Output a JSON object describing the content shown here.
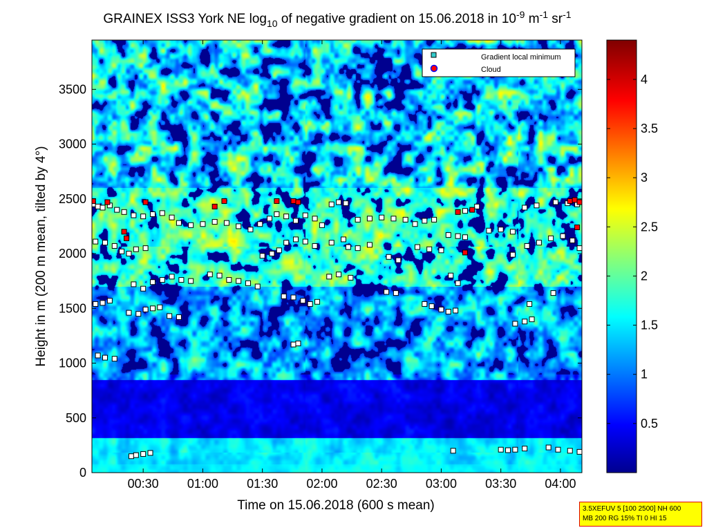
{
  "chart_data": {
    "type": "heatmap",
    "title": {
      "prefix": "GRAINEX ISS3 York NE log",
      "sub": "10",
      "middle": " of negative gradient on 15.06.2018 in 10",
      "exp1": "-9",
      "unit1": " m",
      "exp2": "-1",
      "unit2": " sr",
      "exp3": "-1"
    },
    "xlabel": "Time on 15.06.2018 (600 s mean)",
    "ylabel": "Height in m (200 m mean, tilted by 4°)",
    "xlim_hours": [
      0.07,
      4.18
    ],
    "ylim": [
      0,
      3950
    ],
    "x_ticks": [
      {
        "label": "00:30",
        "hours": 0.5
      },
      {
        "label": "01:00",
        "hours": 1.0
      },
      {
        "label": "01:30",
        "hours": 1.5
      },
      {
        "label": "02:00",
        "hours": 2.0
      },
      {
        "label": "02:30",
        "hours": 2.5
      },
      {
        "label": "03:00",
        "hours": 3.0
      },
      {
        "label": "03:30",
        "hours": 3.5
      },
      {
        "label": "04:00",
        "hours": 4.0
      }
    ],
    "y_ticks": [
      "0",
      "500",
      "1000",
      "1500",
      "2000",
      "2500",
      "3000",
      "3500"
    ],
    "colorbar": {
      "range": [
        0,
        4.4
      ],
      "ticks": [
        "0.5",
        "1",
        "1.5",
        "2",
        "2.5",
        "3",
        "3.5",
        "4"
      ],
      "colormap": [
        "#00008f",
        "#0000ff",
        "#00ffff",
        "#ffff00",
        "#ff0000",
        "#800000"
      ]
    },
    "legend": {
      "position": "top-right",
      "items": [
        {
          "label": "Gradient local minimum",
          "marker": "square",
          "color": "#33cccc"
        },
        {
          "label": "Cloud",
          "marker": "circle",
          "color": "#ff0000"
        }
      ]
    },
    "series": [
      {
        "name": "Gradient local minimum",
        "points": [
          [
            0.08,
            2450
          ],
          [
            0.12,
            2430
          ],
          [
            0.16,
            2420
          ],
          [
            0.22,
            2440
          ],
          [
            0.28,
            2400
          ],
          [
            0.34,
            2380
          ],
          [
            0.42,
            2350
          ],
          [
            0.5,
            2340
          ],
          [
            0.58,
            2360
          ],
          [
            0.66,
            2370
          ],
          [
            0.74,
            2330
          ],
          [
            0.8,
            2280
          ],
          [
            0.9,
            2260
          ],
          [
            1.0,
            2270
          ],
          [
            1.1,
            2290
          ],
          [
            1.2,
            2280
          ],
          [
            1.3,
            2250
          ],
          [
            1.4,
            2220
          ],
          [
            1.48,
            2270
          ],
          [
            1.56,
            2320
          ],
          [
            1.62,
            2360
          ],
          [
            1.7,
            2340
          ],
          [
            1.78,
            2300
          ],
          [
            1.86,
            2350
          ],
          [
            1.94,
            2320
          ],
          [
            2.0,
            2260
          ],
          [
            2.08,
            2450
          ],
          [
            2.14,
            2470
          ],
          [
            2.2,
            2460
          ],
          [
            2.3,
            2310
          ],
          [
            2.4,
            2320
          ],
          [
            2.5,
            2330
          ],
          [
            2.6,
            2320
          ],
          [
            2.7,
            2310
          ],
          [
            2.78,
            2270
          ],
          [
            2.86,
            2300
          ],
          [
            2.94,
            2310
          ],
          [
            3.2,
            2390
          ],
          [
            3.3,
            2430
          ],
          [
            3.4,
            2210
          ],
          [
            3.5,
            2220
          ],
          [
            3.6,
            2200
          ],
          [
            3.7,
            2420
          ],
          [
            3.8,
            2440
          ],
          [
            3.96,
            2470
          ],
          [
            4.06,
            2460
          ],
          [
            4.14,
            2450
          ],
          [
            0.1,
            2110
          ],
          [
            0.18,
            2100
          ],
          [
            0.26,
            2070
          ],
          [
            0.32,
            2020
          ],
          [
            0.38,
            2000
          ],
          [
            0.44,
            2040
          ],
          [
            0.52,
            2050
          ],
          [
            1.5,
            1980
          ],
          [
            1.58,
            2000
          ],
          [
            1.64,
            2030
          ],
          [
            1.7,
            2100
          ],
          [
            1.78,
            2130
          ],
          [
            1.86,
            2110
          ],
          [
            1.94,
            2070
          ],
          [
            2.08,
            2100
          ],
          [
            2.18,
            2130
          ],
          [
            2.22,
            2060
          ],
          [
            2.3,
            2050
          ],
          [
            2.4,
            2080
          ],
          [
            2.56,
            1970
          ],
          [
            2.64,
            1940
          ],
          [
            2.8,
            2060
          ],
          [
            2.9,
            2040
          ],
          [
            3.0,
            2030
          ],
          [
            3.06,
            2170
          ],
          [
            3.14,
            2160
          ],
          [
            3.2,
            2150
          ],
          [
            3.6,
            1990
          ],
          [
            3.72,
            2070
          ],
          [
            3.82,
            2100
          ],
          [
            3.92,
            2140
          ],
          [
            4.02,
            2160
          ],
          [
            4.1,
            2120
          ],
          [
            4.16,
            2050
          ],
          [
            0.42,
            1720
          ],
          [
            0.5,
            1680
          ],
          [
            0.58,
            1740
          ],
          [
            0.66,
            1760
          ],
          [
            0.74,
            1790
          ],
          [
            0.82,
            1760
          ],
          [
            0.9,
            1750
          ],
          [
            1.06,
            1810
          ],
          [
            1.14,
            1800
          ],
          [
            1.22,
            1760
          ],
          [
            1.3,
            1750
          ],
          [
            1.38,
            1730
          ],
          [
            1.46,
            1700
          ],
          [
            2.06,
            1790
          ],
          [
            2.14,
            1810
          ],
          [
            2.24,
            1780
          ],
          [
            2.54,
            1650
          ],
          [
            2.62,
            1640
          ],
          [
            3.08,
            1800
          ],
          [
            3.14,
            1730
          ],
          [
            3.74,
            1540
          ],
          [
            0.1,
            1540
          ],
          [
            0.16,
            1550
          ],
          [
            0.22,
            1570
          ],
          [
            0.38,
            1460
          ],
          [
            0.46,
            1450
          ],
          [
            0.52,
            1490
          ],
          [
            0.58,
            1500
          ],
          [
            0.64,
            1510
          ],
          [
            0.72,
            1430
          ],
          [
            0.8,
            1420
          ],
          [
            1.68,
            1610
          ],
          [
            1.76,
            1600
          ],
          [
            1.84,
            1570
          ],
          [
            1.9,
            1540
          ],
          [
            1.96,
            1560
          ],
          [
            2.86,
            1540
          ],
          [
            2.92,
            1520
          ],
          [
            3.0,
            1490
          ],
          [
            3.06,
            1470
          ],
          [
            3.12,
            1480
          ],
          [
            3.62,
            1360
          ],
          [
            3.7,
            1380
          ],
          [
            3.76,
            1400
          ],
          [
            3.94,
            1640
          ],
          [
            0.12,
            1070
          ],
          [
            0.18,
            1050
          ],
          [
            0.26,
            1040
          ],
          [
            1.76,
            1170
          ],
          [
            1.8,
            1180
          ],
          [
            0.4,
            150
          ],
          [
            0.44,
            160
          ],
          [
            0.5,
            170
          ],
          [
            0.56,
            180
          ],
          [
            3.1,
            200
          ],
          [
            3.5,
            210
          ],
          [
            3.56,
            205
          ],
          [
            3.62,
            210
          ],
          [
            3.7,
            220
          ],
          [
            3.9,
            230
          ],
          [
            3.98,
            210
          ],
          [
            4.08,
            200
          ],
          [
            4.16,
            190
          ]
        ]
      },
      {
        "name": "Cloud",
        "points": [
          [
            0.08,
            2480
          ],
          [
            0.2,
            2470
          ],
          [
            0.36,
            2140
          ],
          [
            0.52,
            2470
          ],
          [
            1.1,
            2430
          ],
          [
            1.18,
            2480
          ],
          [
            1.62,
            2480
          ],
          [
            1.76,
            2480
          ],
          [
            1.8,
            2470
          ],
          [
            3.14,
            2380
          ],
          [
            3.2,
            2010
          ],
          [
            3.26,
            2400
          ],
          [
            4.08,
            2480
          ],
          [
            4.12,
            2490
          ],
          [
            4.16,
            2470
          ],
          [
            4.14,
            2240
          ],
          [
            0.34,
            2200
          ]
        ]
      }
    ]
  },
  "info_box": {
    "line1": "3.5XEFUV 5 [100 2500] NH 600",
    "line2": "MB 200 RG 15% TI 0 HI 15"
  }
}
